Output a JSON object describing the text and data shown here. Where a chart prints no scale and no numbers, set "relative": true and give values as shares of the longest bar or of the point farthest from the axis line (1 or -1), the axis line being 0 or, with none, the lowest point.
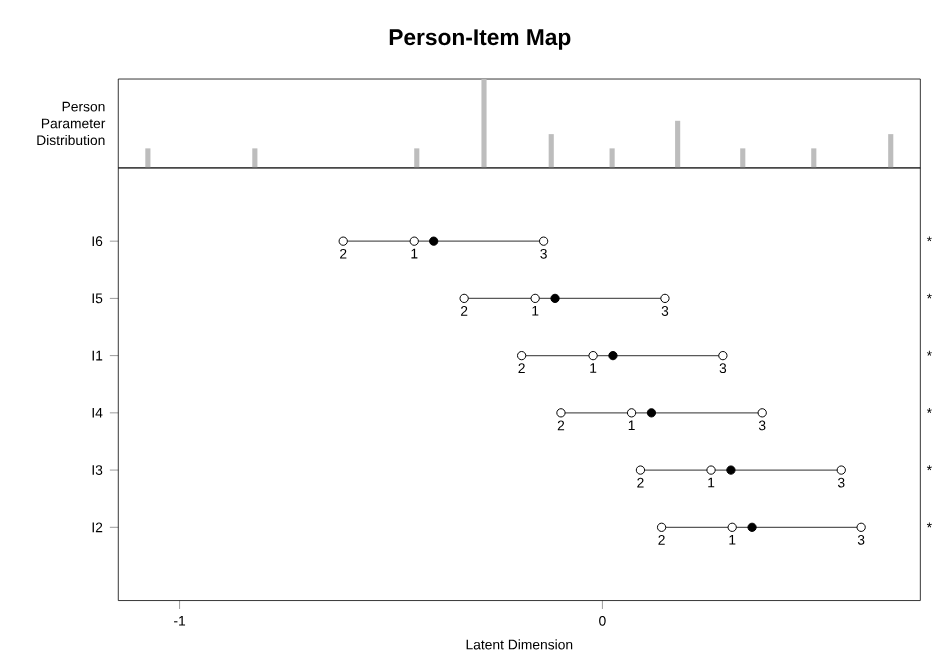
{
  "chart_data": [
    {
      "type": "bar",
      "title": "Person-Item Map",
      "ylabel": "Person Parameter Distribution",
      "x": [
        -1.075,
        -0.822,
        -0.439,
        -0.28,
        -0.121,
        0.023,
        0.178,
        0.332,
        0.5,
        0.682
      ],
      "values": [
        0.22,
        0.22,
        0.22,
        1,
        0.38,
        0.22,
        0.53,
        0.22,
        0.22,
        0.38
      ],
      "color": "#bdbdbd",
      "relative": true,
      "xlim": [
        -1.145,
        0.752
      ]
    },
    {
      "type": "scatter",
      "orientation": "horizontal",
      "xlabel": "Latent Dimension",
      "categories": [
        "I6",
        "I5",
        "I1",
        "I4",
        "I3",
        "I2"
      ],
      "xlim": [
        -1.145,
        0.752
      ],
      "xticks": [
        -1,
        0
      ],
      "marker": "circle",
      "annotations": [
        "*",
        "*",
        "*",
        "*",
        "*",
        "*"
      ],
      "series": [
        {
          "name": "1",
          "color": "#ffffff",
          "values": [
            -0.445,
            -0.159,
            -0.022,
            0.069,
            0.257,
            0.307
          ]
        },
        {
          "name": "2",
          "color": "#ffffff",
          "values": [
            -0.613,
            -0.327,
            -0.191,
            -0.098,
            0.09,
            0.14
          ]
        },
        {
          "name": "3",
          "color": "#ffffff",
          "values": [
            -0.139,
            0.148,
            0.285,
            0.378,
            0.565,
            0.612
          ]
        },
        {
          "color": "#000000",
          "values": [
            -0.399,
            -0.112,
            0.025,
            0.116,
            0.304,
            0.354
          ]
        }
      ]
    }
  ]
}
